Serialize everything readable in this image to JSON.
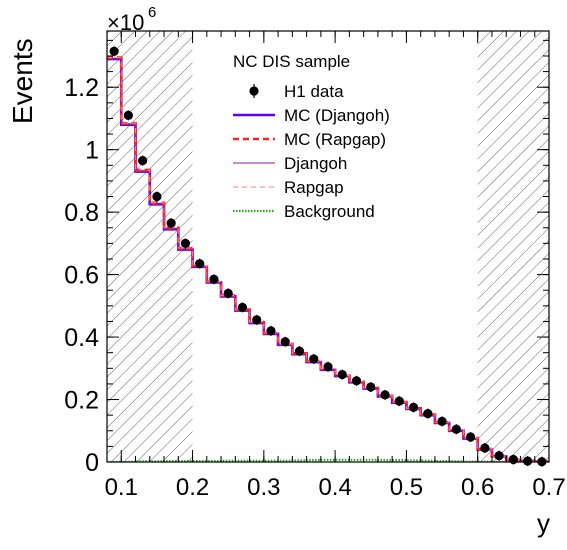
{
  "chart_data": {
    "type": "line",
    "title": "",
    "xlabel": "y",
    "ylabel": "Events",
    "y_exponent_label": "×10",
    "y_exponent_power": "6",
    "xlim": [
      0.08,
      0.7
    ],
    "ylim": [
      0,
      1.38
    ],
    "x_ticks": [
      0.1,
      0.2,
      0.3,
      0.4,
      0.5,
      0.6,
      0.7
    ],
    "x_tick_labels": [
      "0.1",
      "0.2",
      "0.3",
      "0.4",
      "0.5",
      "0.6",
      "0.7"
    ],
    "y_ticks": [
      0,
      0.2,
      0.4,
      0.6,
      0.8,
      1.0,
      1.2
    ],
    "y_tick_labels": [
      "0",
      "0.2",
      "0.4",
      "0.6",
      "0.8",
      "1",
      "1.2"
    ],
    "excluded_regions": [
      [
        0.08,
        0.2
      ],
      [
        0.6,
        0.7
      ]
    ],
    "legend_title": "NC DIS sample",
    "legend_position": "top-center",
    "bin_edges": [
      0.08,
      0.1,
      0.12,
      0.14,
      0.16,
      0.18,
      0.2,
      0.22,
      0.24,
      0.26,
      0.28,
      0.3,
      0.32,
      0.34,
      0.36,
      0.38,
      0.4,
      0.42,
      0.44,
      0.46,
      0.48,
      0.5,
      0.52,
      0.54,
      0.56,
      0.58,
      0.6,
      0.62,
      0.64,
      0.66,
      0.68,
      0.7
    ],
    "series": [
      {
        "name": "H1 data",
        "style": "markers",
        "color": "#000000",
        "values": [
          1.315,
          1.11,
          0.965,
          0.85,
          0.765,
          0.7,
          0.635,
          0.585,
          0.54,
          0.495,
          0.455,
          0.42,
          0.385,
          0.355,
          0.33,
          0.305,
          0.28,
          0.26,
          0.24,
          0.215,
          0.195,
          0.175,
          0.155,
          0.13,
          0.105,
          0.08,
          0.045,
          0.02,
          0.008,
          0.003,
          0.001
        ]
      },
      {
        "name": "MC (Djangoh)",
        "style": "step-thick",
        "color": "#5b00ff",
        "values": [
          1.29,
          1.08,
          0.93,
          0.825,
          0.745,
          0.68,
          0.625,
          0.575,
          0.53,
          0.485,
          0.445,
          0.41,
          0.375,
          0.345,
          0.32,
          0.295,
          0.275,
          0.255,
          0.235,
          0.21,
          0.19,
          0.17,
          0.15,
          0.125,
          0.1,
          0.075,
          0.04,
          0.018,
          0.007,
          0.003,
          0.001
        ]
      },
      {
        "name": "MC (Rapgap)",
        "style": "step-dashed-thick",
        "color": "#ff2020",
        "values": [
          1.295,
          1.085,
          0.935,
          0.83,
          0.75,
          0.685,
          0.628,
          0.578,
          0.533,
          0.488,
          0.448,
          0.413,
          0.378,
          0.348,
          0.323,
          0.298,
          0.277,
          0.257,
          0.237,
          0.212,
          0.192,
          0.172,
          0.152,
          0.127,
          0.102,
          0.077,
          0.042,
          0.019,
          0.007,
          0.003,
          0.001
        ]
      },
      {
        "name": "Djangoh",
        "style": "step-thin",
        "color": "#9a1a8a",
        "values": [
          1.29,
          1.08,
          0.93,
          0.825,
          0.745,
          0.68,
          0.625,
          0.575,
          0.53,
          0.485,
          0.445,
          0.41,
          0.375,
          0.345,
          0.32,
          0.295,
          0.275,
          0.255,
          0.235,
          0.21,
          0.19,
          0.17,
          0.15,
          0.125,
          0.1,
          0.075,
          0.04,
          0.018,
          0.007,
          0.003,
          0.001
        ]
      },
      {
        "name": "Rapgap",
        "style": "step-dashed-thin",
        "color": "#ff7f7f",
        "values": [
          1.295,
          1.085,
          0.935,
          0.83,
          0.75,
          0.685,
          0.628,
          0.578,
          0.533,
          0.488,
          0.448,
          0.413,
          0.378,
          0.348,
          0.323,
          0.298,
          0.277,
          0.257,
          0.237,
          0.212,
          0.192,
          0.172,
          0.152,
          0.127,
          0.102,
          0.077,
          0.042,
          0.019,
          0.007,
          0.003,
          0.001
        ]
      },
      {
        "name": "Background",
        "style": "step-dotted",
        "color": "#22aa22",
        "values": [
          0.0,
          0.0,
          0.002,
          0.002,
          0.003,
          0.003,
          0.003,
          0.003,
          0.004,
          0.004,
          0.004,
          0.004,
          0.004,
          0.005,
          0.006,
          0.007,
          0.007,
          0.007,
          0.007,
          0.006,
          0.006,
          0.005,
          0.004,
          0.003,
          0.002,
          0.001,
          0.001,
          0.0,
          0.0,
          0.0,
          0.0
        ]
      }
    ]
  }
}
